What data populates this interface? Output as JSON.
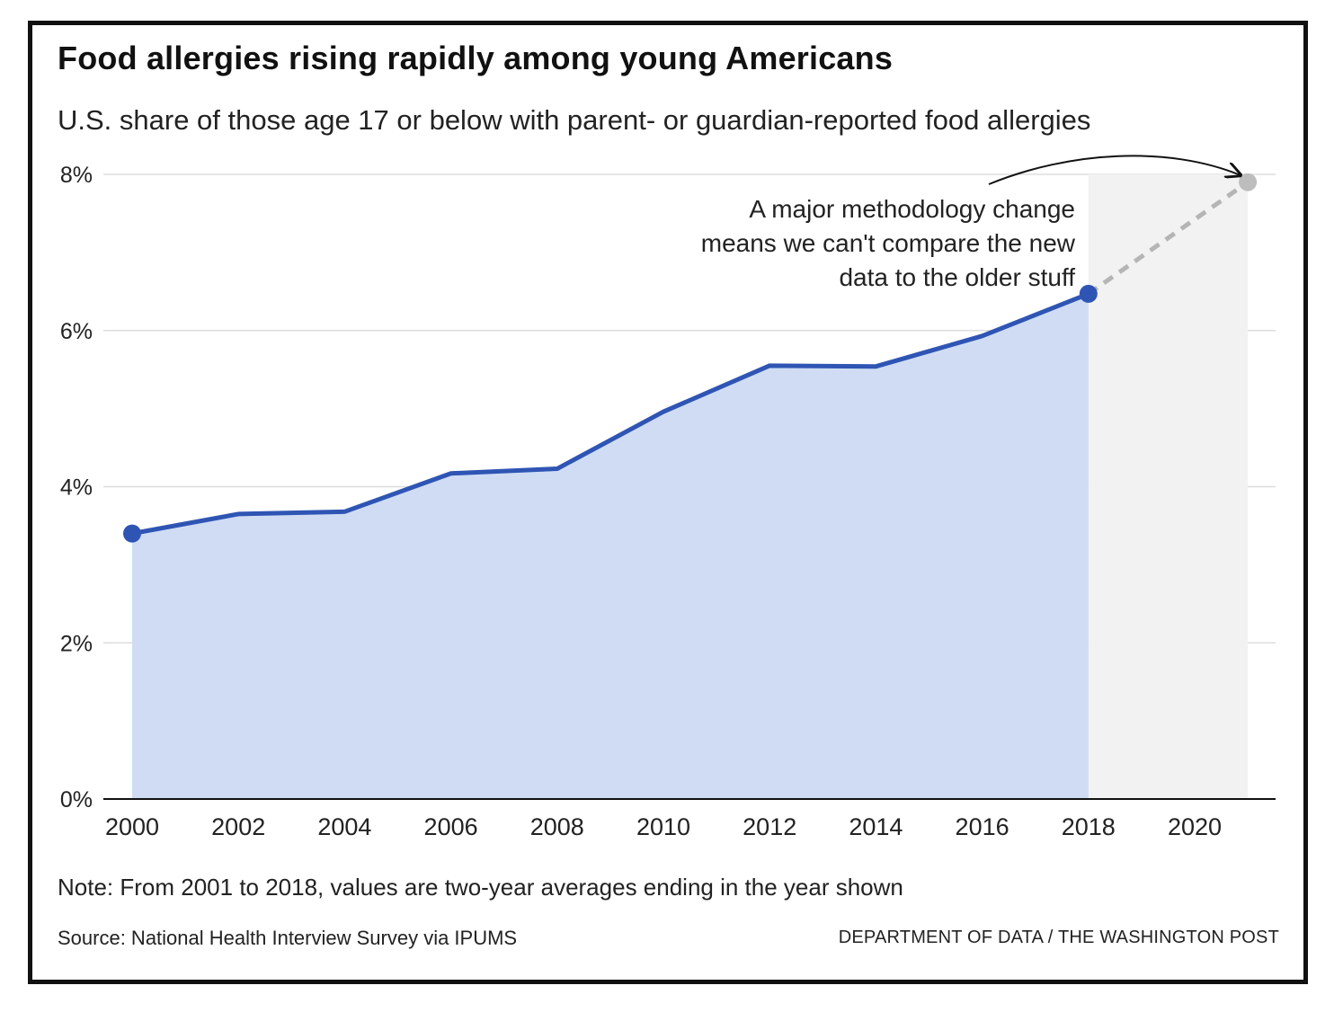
{
  "title": "Food allergies rising rapidly among young Americans",
  "subtitle": "U.S. share of those age 17 or below with parent- or guardian-reported food allergies",
  "annotation": "A major methodology change means we can't compare the new data to the older stuff",
  "note": "Note: From 2001 to 2018, values are two-year averages ending in the year shown",
  "source": "Source: National Health Interview Survey via IPUMS",
  "credit": "DEPARTMENT OF DATA / THE WASHINGTON POST",
  "colors": {
    "line": "#2f55b4",
    "area": "#cfdcf3",
    "new_area": "#f2f2f2",
    "new_point": "#bdbdbd",
    "dashed": "#b5b5b5",
    "grid": "#dddddd"
  },
  "chart_data": {
    "type": "area",
    "title": "Food allergies rising rapidly among young Americans",
    "ylabel": "",
    "xlabel": "",
    "ylim": [
      0,
      8
    ],
    "xlim": [
      2000,
      2021
    ],
    "y_ticks": [
      "0%",
      "2%",
      "4%",
      "6%",
      "8%"
    ],
    "x_ticks": [
      "2000",
      "2002",
      "2004",
      "2006",
      "2008",
      "2010",
      "2012",
      "2014",
      "2016",
      "2018",
      "2020"
    ],
    "grid": "horizontal",
    "series": [
      {
        "x": [
          2000,
          2002,
          2004,
          2006,
          2008,
          2010,
          2012,
          2014,
          2016,
          2018
        ],
        "values": [
          3.4,
          3.65,
          3.68,
          4.17,
          4.23,
          4.96,
          5.55,
          5.54,
          5.93,
          6.47
        ]
      },
      {
        "x": [
          2021
        ],
        "values": [
          7.9
        ]
      }
    ]
  }
}
